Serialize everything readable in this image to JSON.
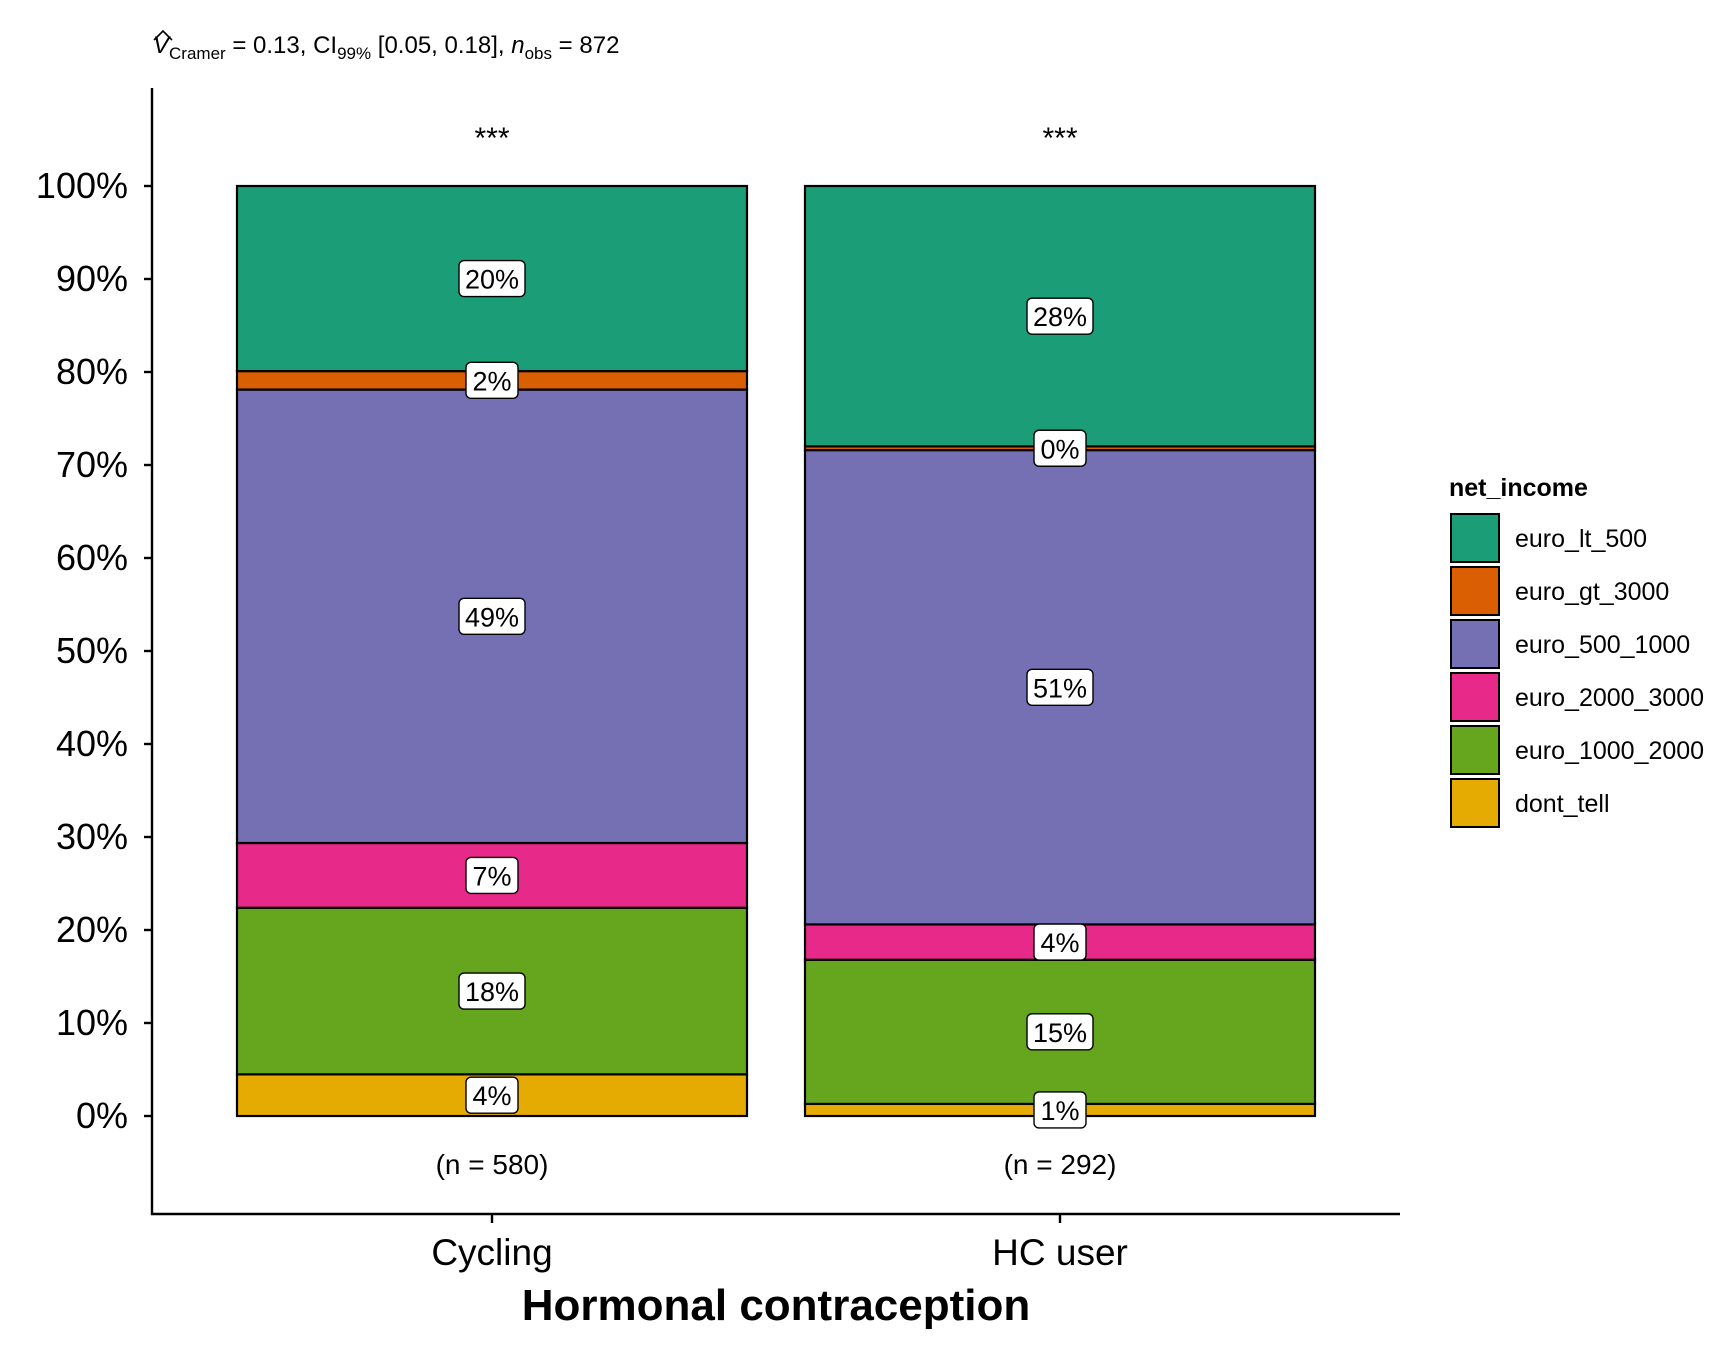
{
  "chart_data": {
    "type": "bar",
    "stacked": true,
    "percent": true,
    "subtitle": {
      "v_symbol": "V",
      "v_sub": "Cramer",
      "part1": " = 0.13, CI",
      "ci_sub": "99%",
      "part2": " [0.05, 0.18], ",
      "n_symbol": "n",
      "n_sub": "obs",
      "part3": " = 872"
    },
    "xlabel": "Hormonal contraception",
    "ylabel": "",
    "ylim": [
      0,
      1
    ],
    "yticks": [
      "0%",
      "10%",
      "20%",
      "30%",
      "40%",
      "50%",
      "60%",
      "70%",
      "80%",
      "90%",
      "100%"
    ],
    "categories": [
      "Cycling",
      "HC user"
    ],
    "significance": [
      "***",
      "***"
    ],
    "counts": [
      "(n = 580)",
      "(n = 292)"
    ],
    "legend": {
      "title": "net_income",
      "position": "right"
    },
    "series": [
      {
        "name": "euro_lt_500",
        "color": "#1B9E77",
        "values": [
          0.2,
          0.28
        ],
        "labels": [
          "20%",
          "28%"
        ]
      },
      {
        "name": "euro_gt_3000",
        "color": "#D95F02",
        "values": [
          0.02,
          0.004
        ],
        "labels": [
          "2%",
          "0%"
        ]
      },
      {
        "name": "euro_500_1000",
        "color": "#7570B3",
        "values": [
          0.49,
          0.51
        ],
        "labels": [
          "49%",
          "51%"
        ]
      },
      {
        "name": "euro_2000_3000",
        "color": "#E7298A",
        "values": [
          0.07,
          0.038
        ],
        "labels": [
          "7%",
          "4%"
        ]
      },
      {
        "name": "euro_1000_2000",
        "color": "#66A61E",
        "values": [
          0.18,
          0.155
        ],
        "labels": [
          "18%",
          "15%"
        ]
      },
      {
        "name": "dont_tell",
        "color": "#E6AB02",
        "values": [
          0.045,
          0.013
        ],
        "labels": [
          "4%",
          "1%"
        ]
      }
    ],
    "grid": false
  }
}
